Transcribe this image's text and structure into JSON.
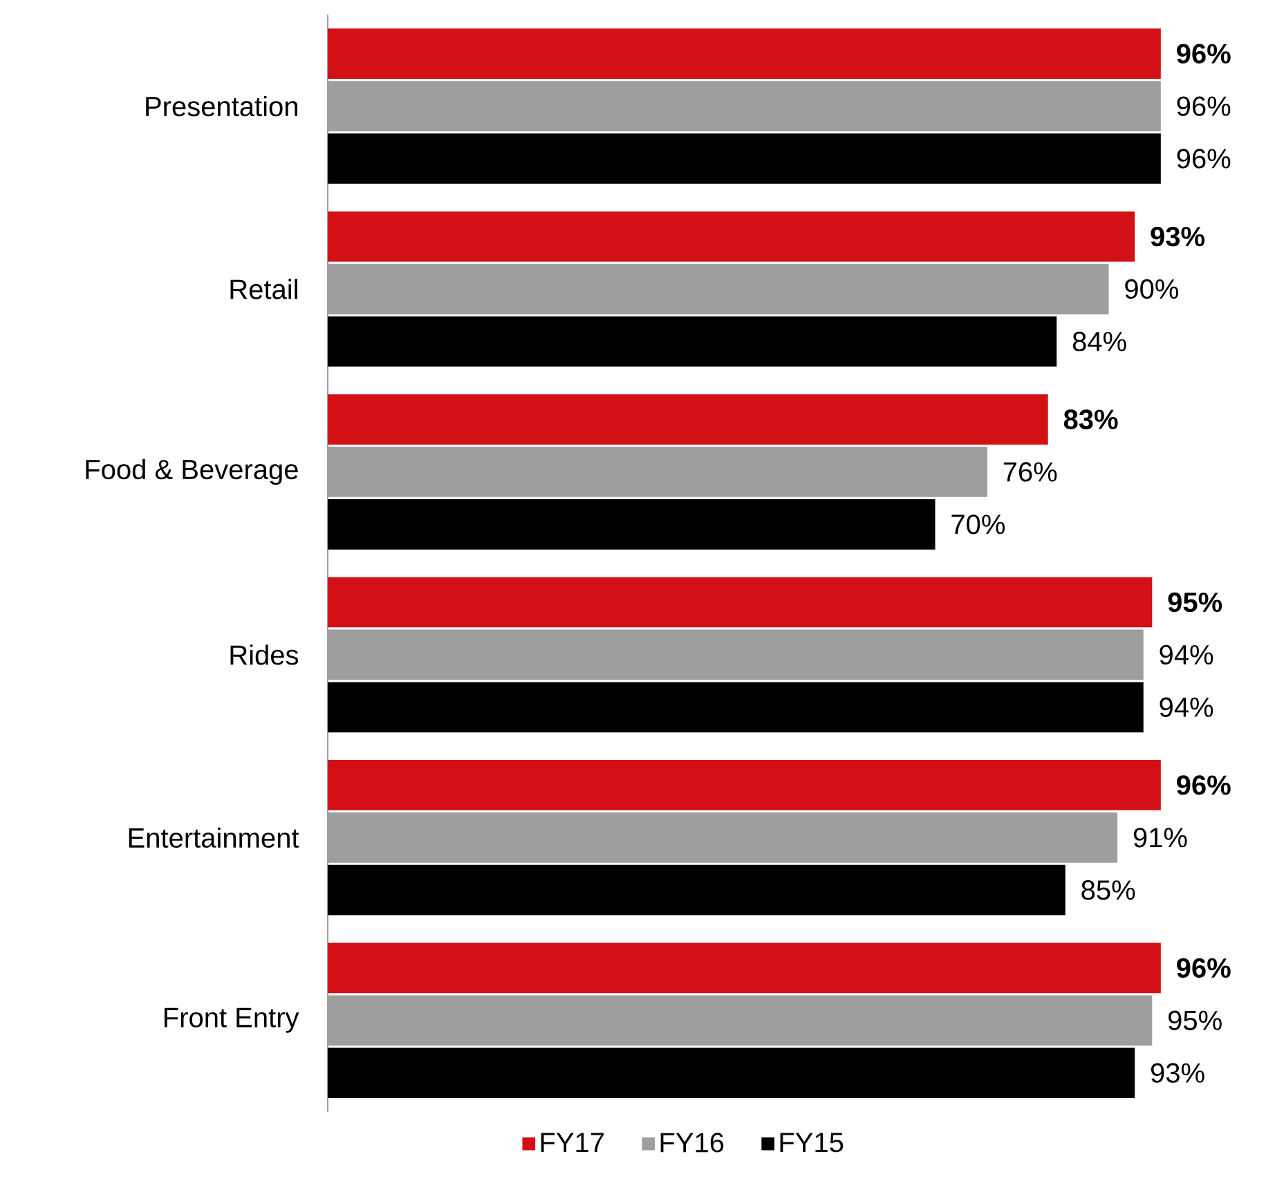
{
  "chart_data": {
    "type": "bar",
    "orientation": "horizontal",
    "categories": [
      "Presentation",
      "Retail",
      "Food & Beverage",
      "Rides",
      "Entertainment",
      "Front Entry"
    ],
    "series": [
      {
        "name": "FY17",
        "color": "#d31016",
        "values": [
          96,
          93,
          83,
          95,
          96,
          96
        ],
        "value_labels": [
          "**96%**",
          "**93%**",
          "**83%**",
          "**95%**",
          "**96%**",
          "**96%**"
        ]
      },
      {
        "name": "FY16",
        "color": "#9e9e9e",
        "values": [
          96,
          90,
          76,
          94,
          91,
          95
        ],
        "value_labels": [
          "96%",
          "90%",
          "76%",
          "94%",
          "91%",
          "95%"
        ]
      },
      {
        "name": "FY15",
        "color": "#000000",
        "values": [
          96,
          84,
          70,
          94,
          85,
          93
        ],
        "value_labels": [
          "96%",
          "84%",
          "70%",
          "94%",
          "85%",
          "93%"
        ]
      }
    ],
    "legend": "bottom"
  }
}
